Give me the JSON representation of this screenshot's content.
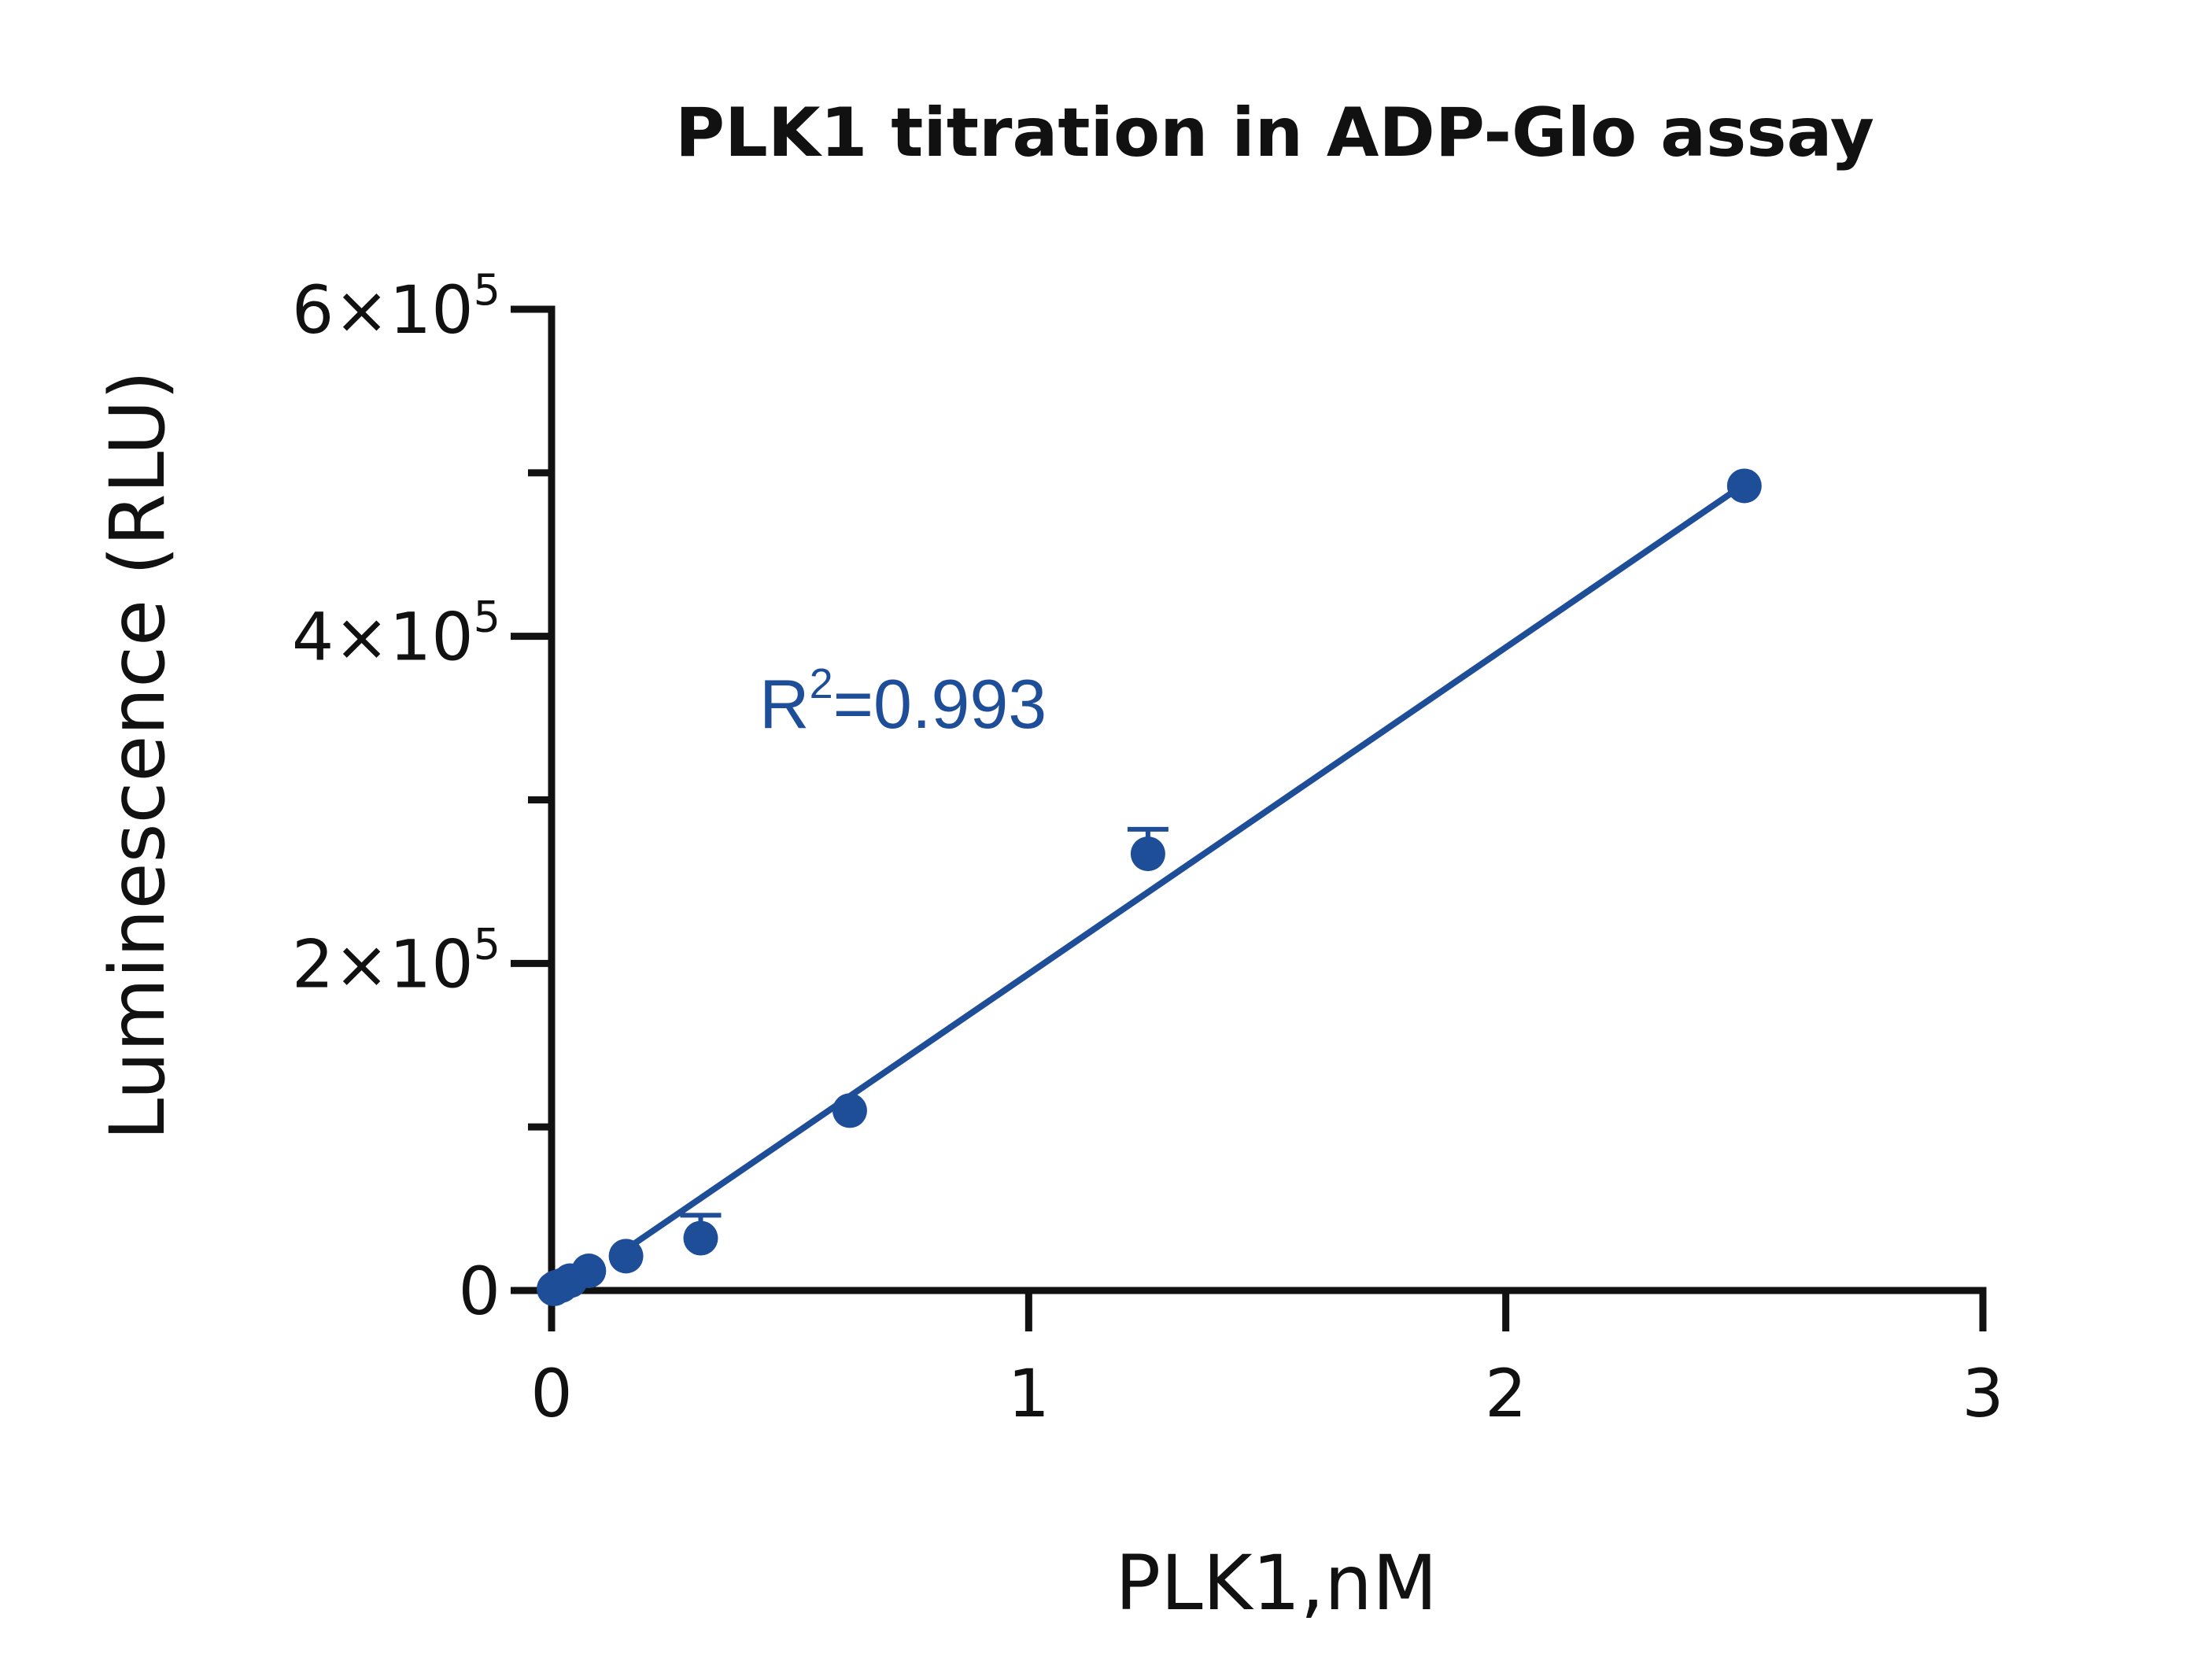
{
  "chart_data": {
    "type": "scatter",
    "title": "PLK1 titration in ADP-Glo assay",
    "xlabel": "PLK1,nM",
    "ylabel": "Luminescence (RLU)",
    "xlim": [
      0,
      3
    ],
    "ylim": [
      0,
      600000
    ],
    "x_ticks": [
      {
        "value": 0,
        "label": "0"
      },
      {
        "value": 1,
        "label": "1"
      },
      {
        "value": 2,
        "label": "2"
      },
      {
        "value": 3,
        "label": "3"
      }
    ],
    "y_ticks": [
      {
        "value": 0,
        "base": "0",
        "exp": ""
      },
      {
        "value": 200000,
        "base": "2×10",
        "exp": "5"
      },
      {
        "value": 400000,
        "base": "4×10",
        "exp": "5"
      },
      {
        "value": 600000,
        "base": "6×10",
        "exp": "5"
      }
    ],
    "y_minor_ticks": [
      100000,
      300000,
      500000
    ],
    "series": [
      {
        "x": [
          0.005,
          0.01,
          0.02,
          0.039,
          0.078,
          0.156,
          0.3125,
          0.625,
          1.25,
          2.5
        ],
        "y": [
          1000,
          2000,
          3000,
          6000,
          12000,
          21000,
          32000,
          110000,
          267000,
          492000
        ],
        "error_upper": [
          0,
          0,
          0,
          0,
          0,
          0,
          14000,
          0,
          15000,
          0
        ]
      }
    ],
    "fit_line": {
      "x": [
        0.15,
        2.5
      ],
      "y": [
        24000,
        493000
      ]
    },
    "annotation": {
      "prefix": "R",
      "sup": "2",
      "text": "=0.993"
    },
    "colors": {
      "series": "#1f4e99",
      "axis": "#111111"
    },
    "grid": false,
    "legend": "none"
  }
}
